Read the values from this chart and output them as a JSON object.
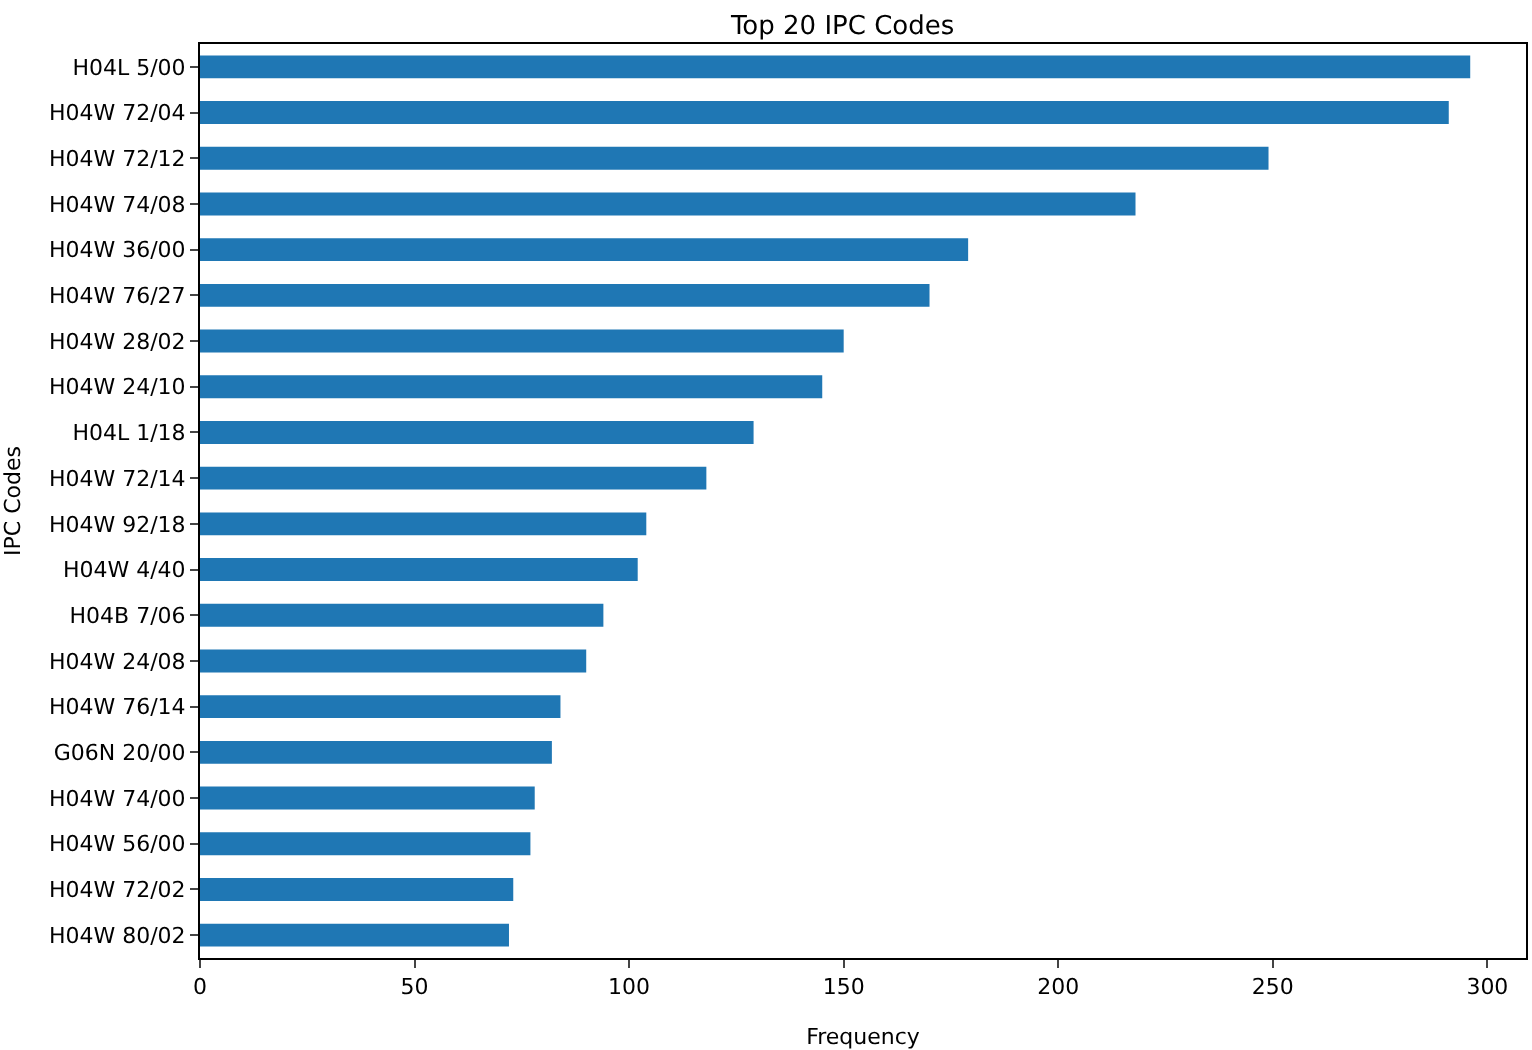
{
  "chart_data": {
    "type": "bar",
    "orientation": "horizontal",
    "title": "Top 20 IPC Codes",
    "xlabel": "Frequency",
    "ylabel": "IPC Codes",
    "categories": [
      "H04L 5/00",
      "H04W 72/04",
      "H04W 72/12",
      "H04W 74/08",
      "H04W 36/00",
      "H04W 76/27",
      "H04W 28/02",
      "H04W 24/10",
      "H04L 1/18",
      "H04W 72/14",
      "H04W 92/18",
      "H04W 4/40",
      "H04B 7/06",
      "H04W 24/08",
      "H04W 76/14",
      "G06N 20/00",
      "H04W 74/00",
      "H04W 56/00",
      "H04W 72/02",
      "H04W 80/02"
    ],
    "values": [
      296,
      291,
      249,
      218,
      179,
      170,
      150,
      145,
      129,
      118,
      104,
      102,
      94,
      90,
      84,
      82,
      78,
      77,
      73,
      72
    ],
    "color": "#1f77b4",
    "xlim": [
      0,
      309
    ],
    "xticks": [
      0,
      50,
      100,
      150,
      200,
      250,
      300
    ],
    "legend": false
  }
}
